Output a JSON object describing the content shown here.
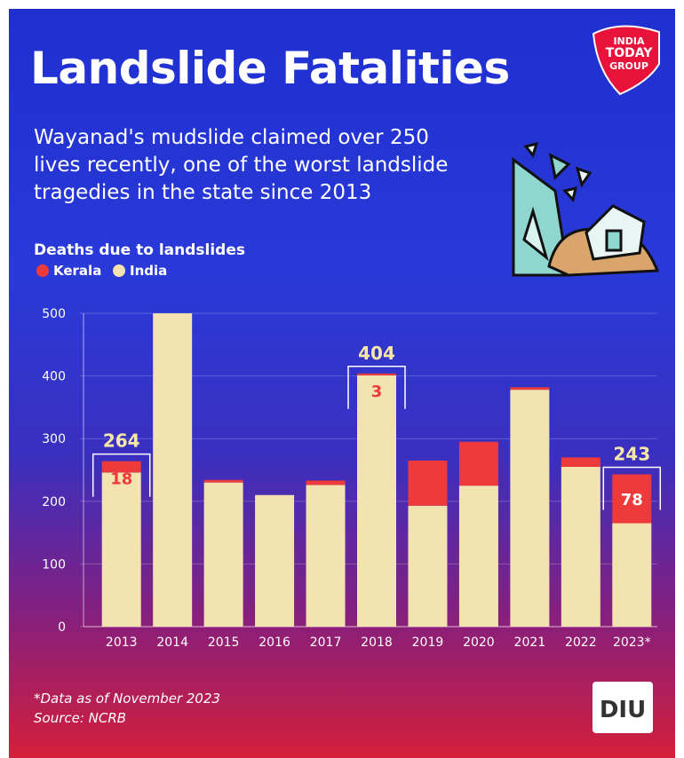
{
  "chart_data": {
    "type": "stacked_bar",
    "title": "Landslide Fatalities",
    "subtitle": "Wayanad's mudslide claimed over 250 lives recently, one of the worst landslide tragedies in the state since 2013",
    "chart_title": "Deaths due to landslides",
    "categories": [
      "2013",
      "2014",
      "2015",
      "2016",
      "2017",
      "2018",
      "2019",
      "2020",
      "2021",
      "2022",
      "2023*"
    ],
    "series": [
      {
        "name": "India",
        "color": "#f3e3b0",
        "values": [
          246,
          500,
          230,
          210,
          226,
          401,
          193,
          225,
          378,
          255,
          165
        ]
      },
      {
        "name": "Kerala",
        "color": "#ee3a3a",
        "values": [
          18,
          0,
          4,
          0,
          7,
          3,
          72,
          70,
          4,
          15,
          78
        ],
        "value_labels": [
          "18",
          null,
          null,
          null,
          null,
          "3",
          null,
          null,
          null,
          null,
          "78"
        ]
      }
    ],
    "legend_order": [
      "Kerala",
      "India"
    ],
    "total_labels": [
      "264",
      null,
      null,
      null,
      null,
      "404",
      null,
      null,
      null,
      null,
      "243"
    ],
    "ylim": [
      0,
      500
    ],
    "yticks": [
      0,
      100,
      200,
      300,
      400,
      500
    ],
    "grid": true,
    "footnote": "*Data as of November 2023",
    "source": "Source: NCRB",
    "brand": [
      "INDIA",
      "TODAY",
      "GROUP"
    ],
    "badge": "DIU"
  }
}
